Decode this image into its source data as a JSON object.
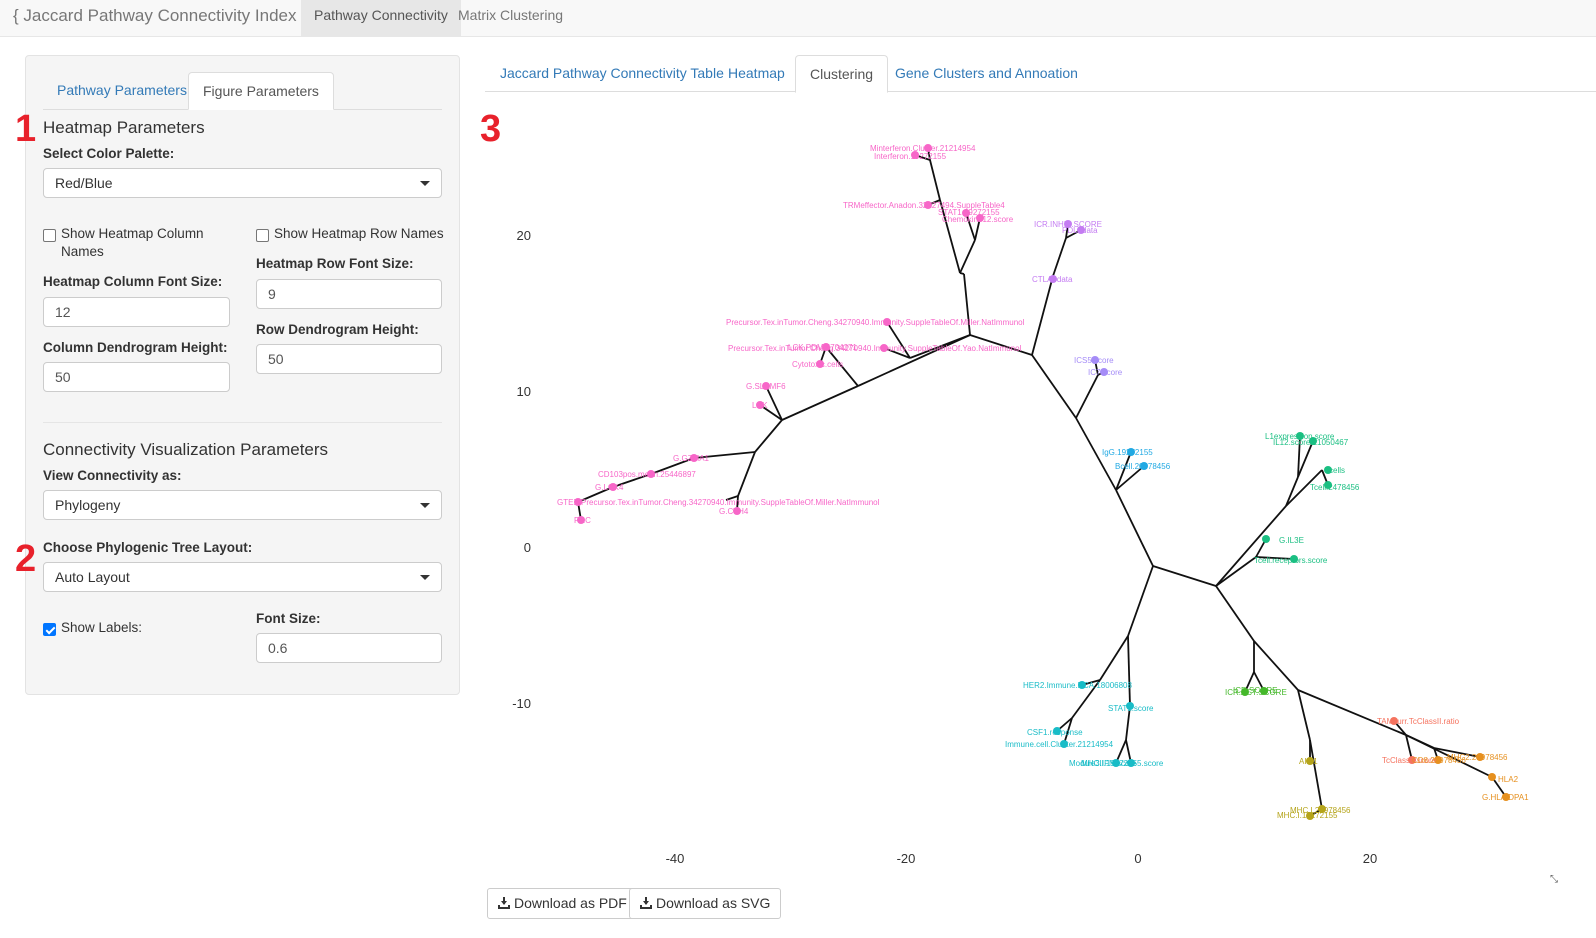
{
  "navbar": {
    "brand": "{ Jaccard Pathway Connectivity Index }",
    "tabs": [
      "Pathway Connectivity",
      "Matrix Clustering"
    ]
  },
  "sidebar": {
    "tabs": [
      "Pathway Parameters",
      "Figure Parameters"
    ],
    "heatmap_title": "Heatmap Parameters",
    "palette_label": "Select Color Palette:",
    "palette_value": "Red/Blue",
    "show_col_names": "Show Heatmap Column Names",
    "show_row_names": "Show Heatmap Row Names",
    "col_font_label": "Heatmap Column Font Size:",
    "col_font_value": "12",
    "row_font_label": "Heatmap Row Font Size:",
    "row_font_value": "9",
    "col_dend_label": "Column Dendrogram Height:",
    "col_dend_value": "50",
    "row_dend_label": "Row Dendrogram Height:",
    "row_dend_value": "50",
    "conn_title": "Connectivity Visualization Parameters",
    "view_label": "View Connectivity as:",
    "view_value": "Phylogeny",
    "layout_label": "Choose Phylogenic Tree Layout:",
    "layout_value": "Auto Layout",
    "show_labels": "Show Labels:",
    "font_size_label": "Font Size:",
    "font_size_value": "0.6"
  },
  "markers": [
    "1",
    "2",
    "3"
  ],
  "main_tabs": [
    "Jaccard Pathway Connectivity Table",
    "Heatmap",
    "Clustering",
    "Gene Clusters and Annoation"
  ],
  "buttons": {
    "pdf": "Download as PDF",
    "svg": "Download as SVG"
  },
  "tree": {
    "x_ticks": [
      "-40",
      "-20",
      "0",
      "20"
    ],
    "y_ticks": [
      "20",
      "10",
      "0",
      "-10"
    ],
    "colors": {
      "pink": "#f766c8",
      "violet": "#c47cf2",
      "lavender": "#a58cf7",
      "sky": "#21a9e3",
      "cyan": "#19bcc7",
      "teal": "#1abf82",
      "green": "#45b82b",
      "olive": "#b5a41a",
      "orange": "#e6901f",
      "red": "#f5735f"
    },
    "labels": [
      {
        "t": "Minterferon.Cluster.21214954",
        "c": "pink"
      },
      {
        "t": "Interferon.19272155",
        "c": "pink"
      },
      {
        "t": "TRMeffector.Anadon.32127494.SuppleTable4",
        "c": "pink"
      },
      {
        "t": "STAT1.19272155",
        "c": "pink"
      },
      {
        "t": "Chemokine12.score",
        "c": "pink"
      },
      {
        "t": "ICR.INHIB.SCORE",
        "c": "violet"
      },
      {
        "t": "PDL1data",
        "c": "violet"
      },
      {
        "t": "CTLA4data",
        "c": "violet"
      },
      {
        "t": "Precursor.Tex.inTumor.Cheng.34270940.Immunity.SuppleTableOf.Miller.NatImmunol",
        "c": "pink"
      },
      {
        "t": "Precursor.Tex.inTumor.Cheng.34270940.Immunity.SuppleTableOf.Yao.NatImmunol",
        "c": "pink"
      },
      {
        "t": "LCK.PDM.6704271",
        "c": "pink"
      },
      {
        "t": "Cytotoxic.cells",
        "c": "pink"
      },
      {
        "t": "G.SLAMF6",
        "c": "pink"
      },
      {
        "t": "LCK",
        "c": "pink"
      },
      {
        "t": "G.GZMA1",
        "c": "pink"
      },
      {
        "t": "CD103pos.mean.25446897",
        "c": "pink"
      },
      {
        "t": "G.LCK4",
        "c": "pink"
      },
      {
        "t": "GTEX.Precursor.Tex.inTumor.Cheng.34270940.Immunity.SuppleTableOf.Miller.NatImmunol",
        "c": "pink"
      },
      {
        "t": "G.CTH4",
        "c": "pink"
      },
      {
        "t": "PRC",
        "c": "pink"
      },
      {
        "t": "ICS5.score",
        "c": "lavender"
      },
      {
        "t": "IC7.score",
        "c": "lavender"
      },
      {
        "t": "IgG.19272155",
        "c": "sky"
      },
      {
        "t": "Bcell.20678456",
        "c": "sky"
      },
      {
        "t": "L1expression.score",
        "c": "teal"
      },
      {
        "t": "IL12.score.21050467",
        "c": "teal"
      },
      {
        "t": "Tcells",
        "c": "teal"
      },
      {
        "t": "Tcell.2478456",
        "c": "teal"
      },
      {
        "t": "G.IL3E",
        "c": "teal"
      },
      {
        "t": "Tcell.receptors.score",
        "c": "teal"
      },
      {
        "t": "HER2.Immune.PCA.18006808",
        "c": "cyan"
      },
      {
        "t": "STAT1.score",
        "c": "cyan"
      },
      {
        "t": "CSF1.response",
        "c": "cyan"
      },
      {
        "t": "Immune.cell.Cluster.21214954",
        "c": "cyan"
      },
      {
        "t": "Module3.IFN.score",
        "c": "cyan"
      },
      {
        "t": "MHCII.19272155.score",
        "c": "cyan"
      },
      {
        "t": "ICR.ACT.SCORE",
        "c": "green"
      },
      {
        "t": "ICR.SCORE",
        "c": "green"
      },
      {
        "t": "TAMsurr.TcClassII.ratio",
        "c": "red"
      },
      {
        "t": "TcClassII.score",
        "c": "red"
      },
      {
        "t": "MHC2.21978456",
        "c": "orange"
      },
      {
        "t": "CD8.21978456",
        "c": "orange"
      },
      {
        "t": "HLA2",
        "c": "orange"
      },
      {
        "t": "G.HLA.DPA1",
        "c": "orange"
      },
      {
        "t": "AIM1",
        "c": "olive"
      },
      {
        "t": "MHC.I.21978456",
        "c": "olive"
      },
      {
        "t": "MHC.I.19272155",
        "c": "olive"
      }
    ]
  }
}
